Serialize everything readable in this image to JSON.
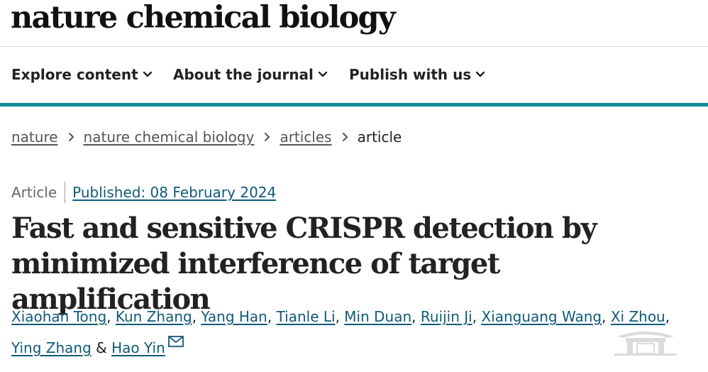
{
  "header": {
    "brand": "nature chemical biology"
  },
  "nav": {
    "items": [
      {
        "label": "Explore content"
      },
      {
        "label": "About the journal"
      },
      {
        "label": "Publish with us"
      }
    ]
  },
  "breadcrumb": {
    "items": [
      "nature",
      "nature chemical biology",
      "articles"
    ],
    "current": "article"
  },
  "article": {
    "type": "Article",
    "published": "Published: 08 February 2024",
    "title": "Fast and sensitive CRISPR detection by minimized interference of target amplification",
    "authors": [
      "Xiaohan Tong",
      "Kun Zhang",
      "Yang Han",
      "Tianle Li",
      "Min Duan",
      "Ruijin Ji",
      "Xianguang Wang",
      "Xi Zhou",
      "Ying Zhang",
      "Hao Yin"
    ],
    "separator": ", ",
    "conjunction": "&"
  },
  "colors": {
    "accent": "#0e8a92",
    "link": "#0f5a79",
    "text": "#222222"
  },
  "icons": {
    "nav_chevron": "chevron-down-icon",
    "breadcrumb_separator": "chevron-right-icon",
    "corresponding_author": "mail-icon",
    "watermark": "gate-watermark"
  }
}
